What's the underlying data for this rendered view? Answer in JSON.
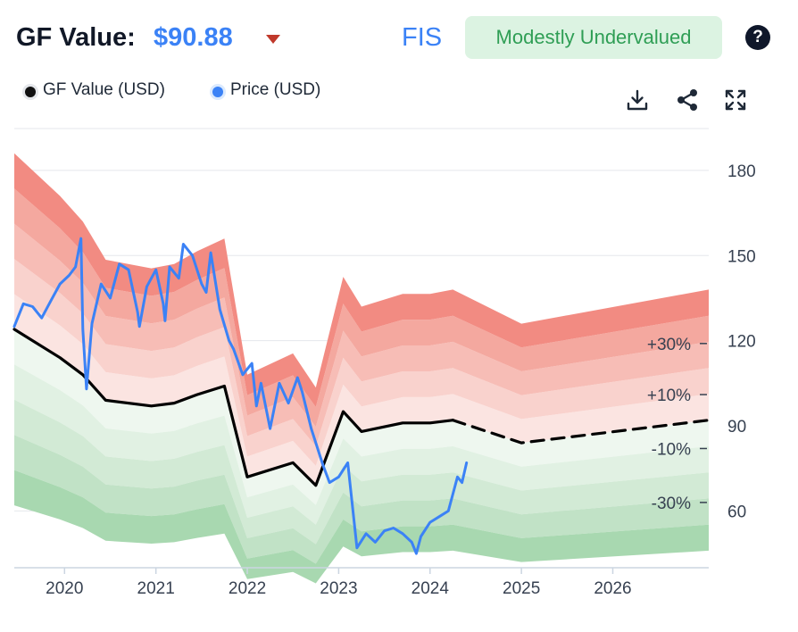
{
  "header": {
    "gf_label": "GF Value:",
    "gf_value": "$90.88",
    "ticker": "FIS",
    "valuation_badge": "Modestly Undervalued",
    "help_label": "?"
  },
  "legend": [
    {
      "label": "GF Value (USD)",
      "color": "#111111"
    },
    {
      "label": "Price (USD)",
      "color": "#3b82f6"
    }
  ],
  "toolbar": [
    {
      "icon": "download-icon"
    },
    {
      "icon": "share-icon"
    },
    {
      "icon": "expand-icon"
    }
  ],
  "colors": {
    "price": "#3b82f6",
    "gf_value": "#000000",
    "band_red_outer": "#f28b82",
    "band_green_outer": "#a8d8b0",
    "axis": "#cbd5e1",
    "grid": "#e5e7eb"
  },
  "chart_data": {
    "type": "line",
    "x_range": [
      2019.45,
      2027.05
    ],
    "y_range": [
      40,
      196
    ],
    "xticks": [
      2020,
      2021,
      2022,
      2023,
      2024,
      2025,
      2026
    ],
    "xtick_labels": [
      "2020",
      "2021",
      "2022",
      "2023",
      "2024",
      "2025",
      "2026"
    ],
    "yticks": [
      60,
      90,
      120,
      150,
      180
    ],
    "ytick_labels": [
      "60",
      "90",
      "120",
      "150",
      "180"
    ],
    "band_labels": [
      "+30%",
      "+10%",
      "-10%",
      "-30%"
    ],
    "band_label_values": [
      119,
      101,
      82,
      63
    ],
    "band_fractions_upper": [
      0.1,
      0.2,
      0.3,
      0.4,
      0.5
    ],
    "band_fractions_lower": [
      0.1,
      0.2,
      0.3,
      0.4,
      0.5
    ],
    "grid": true,
    "legend_position": "top-left",
    "series": [
      {
        "name": "GF Value (USD)",
        "style": "solid",
        "x": [
          2019.45,
          2019.95,
          2020.2,
          2020.45,
          2020.95,
          2021.2,
          2021.45,
          2021.75,
          2022.0,
          2022.5,
          2022.75,
          2023.05,
          2023.25,
          2023.7,
          2024.0,
          2024.25
        ],
        "y": [
          124,
          114,
          108,
          99,
          97,
          98,
          101,
          104,
          72,
          77,
          69,
          95,
          88,
          91,
          91,
          92
        ]
      },
      {
        "name": "GF Value (USD)",
        "style": "dashed",
        "x": [
          2024.25,
          2025.0,
          2027.05
        ],
        "y": [
          92,
          84,
          92
        ]
      },
      {
        "name": "Price (USD)",
        "x": [
          2019.45,
          2019.55,
          2019.65,
          2019.75,
          2019.85,
          2019.95,
          2020.05,
          2020.12,
          2020.18,
          2020.2,
          2020.24,
          2020.3,
          2020.4,
          2020.5,
          2020.6,
          2020.7,
          2020.8,
          2020.82,
          2020.9,
          2021.0,
          2021.08,
          2021.1,
          2021.15,
          2021.25,
          2021.3,
          2021.4,
          2021.5,
          2021.55,
          2021.6,
          2021.7,
          2021.8,
          2021.85,
          2021.95,
          2022.05,
          2022.1,
          2022.15,
          2022.25,
          2022.35,
          2022.45,
          2022.55,
          2022.6,
          2022.7,
          2022.75,
          2022.8,
          2022.83,
          2022.9,
          2023.0,
          2023.1,
          2023.2,
          2023.3,
          2023.4,
          2023.5,
          2023.6,
          2023.7,
          2023.8,
          2023.85,
          2023.9,
          2024.0,
          2024.1,
          2024.2,
          2024.3,
          2024.35,
          2024.4
        ],
        "y": [
          125,
          133,
          132,
          128,
          134,
          140,
          143,
          146,
          156,
          124,
          103,
          126,
          140,
          135,
          147,
          145,
          130,
          125,
          139,
          145,
          133,
          127,
          146,
          142,
          154,
          150,
          140,
          137,
          151,
          131,
          120,
          117,
          108,
          112,
          97,
          105,
          89,
          105,
          98,
          107,
          102,
          89,
          84,
          79,
          76,
          70,
          72,
          77,
          47,
          52,
          49,
          53,
          54,
          52,
          49,
          45,
          51,
          56,
          58,
          60,
          72,
          70,
          77
        ]
      }
    ]
  }
}
